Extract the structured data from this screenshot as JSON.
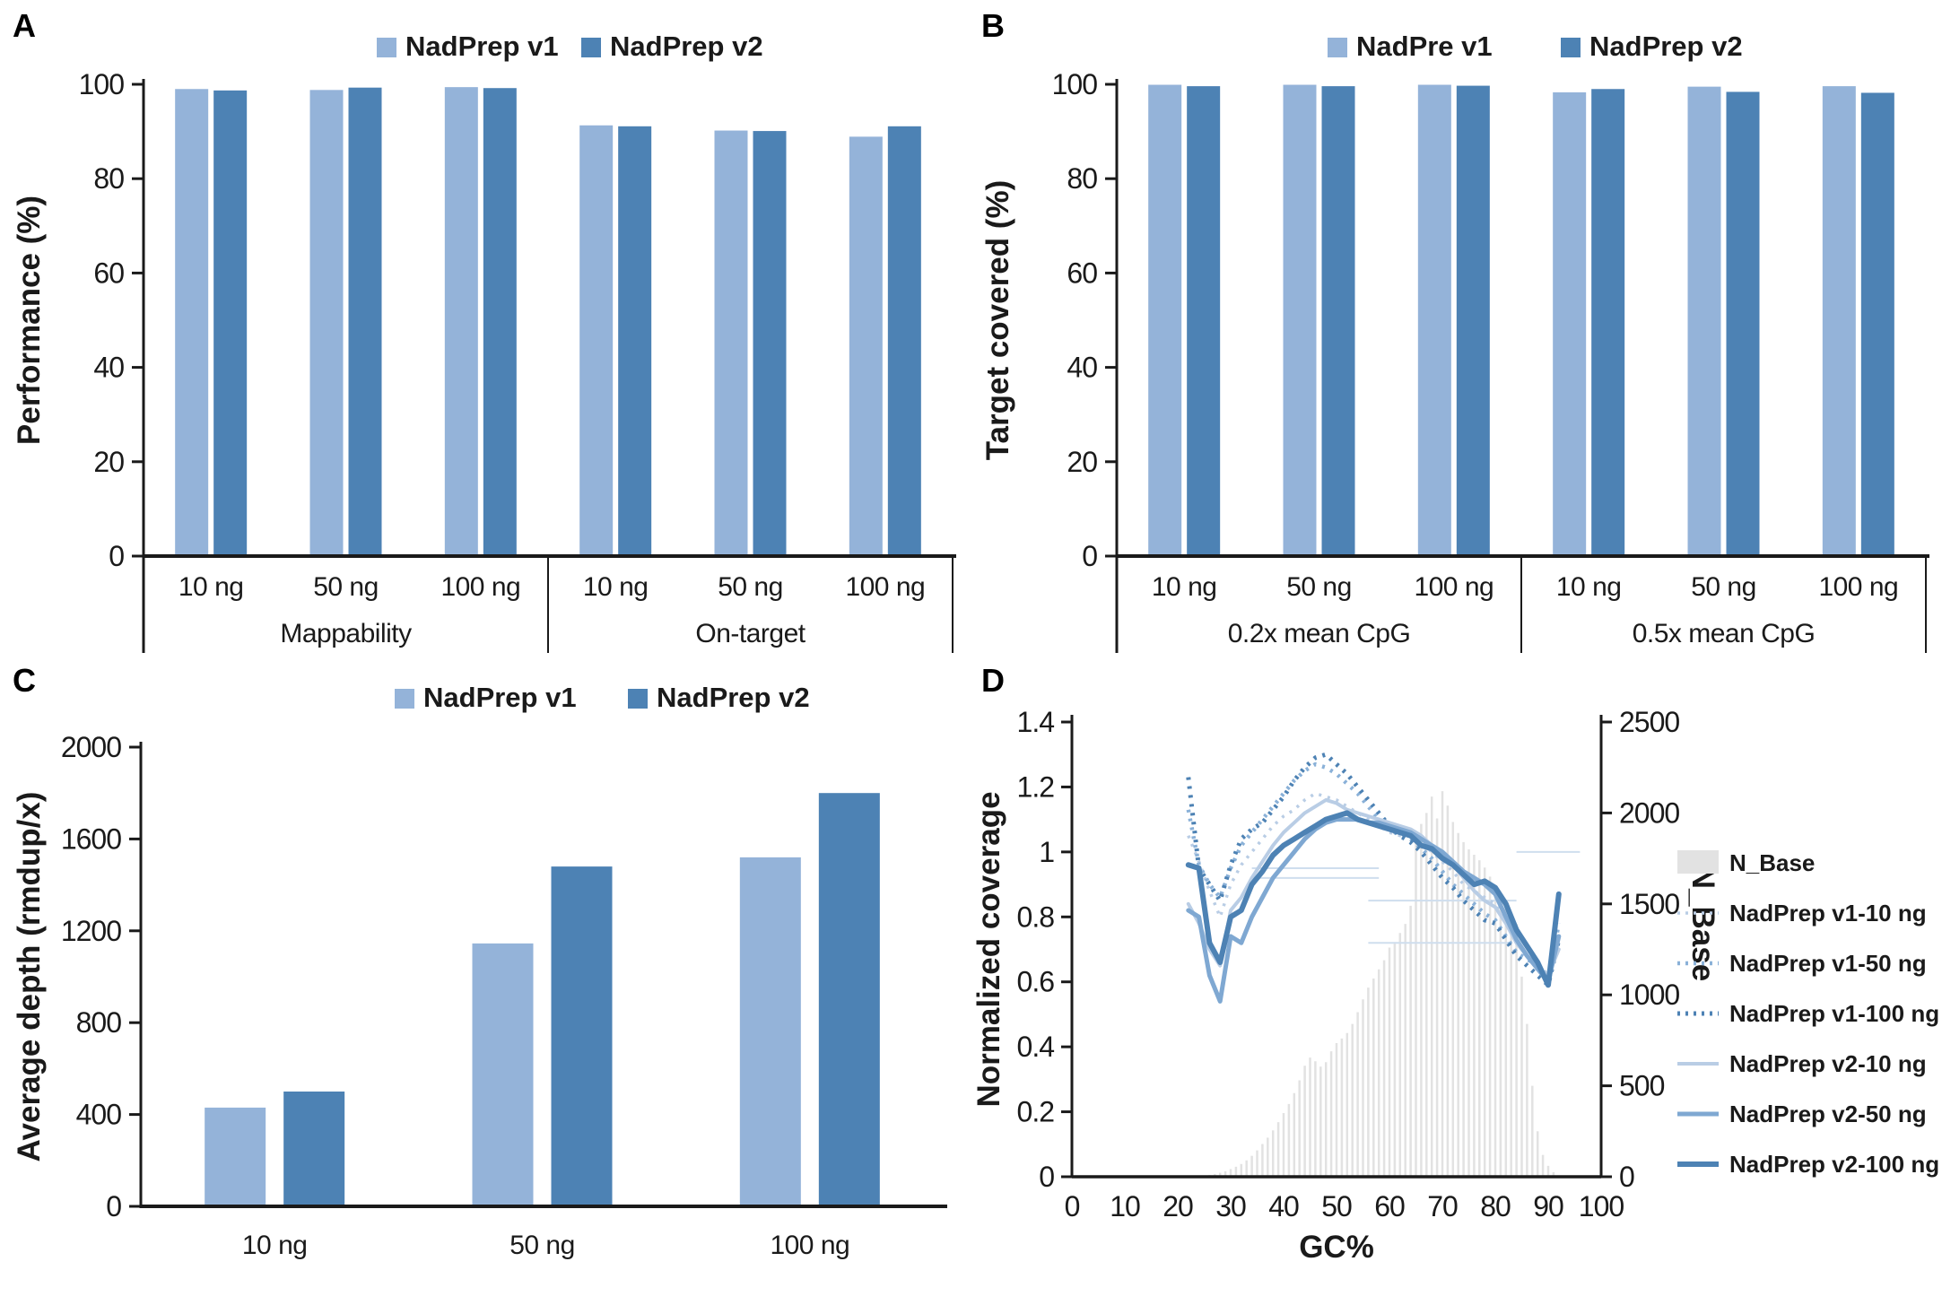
{
  "panels": {
    "a": {
      "label": "A"
    },
    "b": {
      "label": "B"
    },
    "c": {
      "label": "C"
    },
    "d": {
      "label": "D"
    }
  },
  "colors": {
    "v1_light_blue": "#94b3d9",
    "v2_dark_blue": "#4d82b4",
    "histogram_gray": "#e2e2e2",
    "axis_black": "#1a1a1a"
  },
  "chart_data": [
    {
      "id": "A",
      "type": "bar",
      "ylabel": "Performance (%)",
      "ylim": [
        0,
        100
      ],
      "yticks": [
        0,
        20,
        40,
        60,
        80,
        100
      ],
      "legend": [
        {
          "key": "v1",
          "label": "NadPrep v1",
          "color": "#94b3d9"
        },
        {
          "key": "v2",
          "label": "NadPrep v2",
          "color": "#4d82b4"
        }
      ],
      "legend_position": "top",
      "grid": false,
      "groups": [
        {
          "label": "Mappability",
          "categories": [
            "10 ng",
            "50 ng",
            "100 ng"
          ],
          "v1": [
            99.0,
            98.8,
            99.4
          ],
          "v2": [
            98.7,
            99.3,
            99.2
          ]
        },
        {
          "label": "On-target",
          "categories": [
            "10 ng",
            "50 ng",
            "100 ng"
          ],
          "v1": [
            91.3,
            90.2,
            88.9
          ],
          "v2": [
            91.1,
            90.1,
            91.1
          ]
        }
      ]
    },
    {
      "id": "B",
      "type": "bar",
      "ylabel": "Target covered (%)",
      "ylim": [
        0,
        100
      ],
      "yticks": [
        0,
        20,
        40,
        60,
        80,
        100
      ],
      "legend": [
        {
          "key": "v1",
          "label": "NadPre v1",
          "color": "#94b3d9"
        },
        {
          "key": "v2",
          "label": "NadPrep v2",
          "color": "#4d82b4"
        }
      ],
      "legend_position": "top",
      "grid": false,
      "groups": [
        {
          "label": "0.2x mean CpG",
          "categories": [
            "10 ng",
            "50 ng",
            "100 ng"
          ],
          "v1": [
            99.9,
            99.9,
            99.9
          ],
          "v2": [
            99.6,
            99.6,
            99.7
          ]
        },
        {
          "label": "0.5x mean CpG",
          "categories": [
            "10 ng",
            "50 ng",
            "100 ng"
          ],
          "v1": [
            98.3,
            99.5,
            99.6
          ],
          "v2": [
            99.0,
            98.4,
            98.2
          ]
        }
      ]
    },
    {
      "id": "C",
      "type": "bar",
      "ylabel": "Average depth (rmdup/x)",
      "ylim": [
        0,
        2000
      ],
      "yticks": [
        0,
        400,
        800,
        1200,
        1600,
        2000
      ],
      "legend": [
        {
          "key": "v1",
          "label": "NadPrep v1",
          "color": "#94b3d9"
        },
        {
          "key": "v2",
          "label": "NadPrep v2",
          "color": "#4d82b4"
        }
      ],
      "legend_position": "top",
      "grid": false,
      "groups": [
        {
          "label": "",
          "categories": [
            "10 ng",
            "50 ng",
            "100 ng"
          ],
          "v1": [
            430,
            1145,
            1520
          ],
          "v2": [
            500,
            1480,
            1800
          ]
        }
      ]
    },
    {
      "id": "D",
      "type": "combo",
      "xlabel": "GC%",
      "xlim": [
        0,
        100
      ],
      "xticks": [
        0,
        10,
        20,
        30,
        40,
        50,
        60,
        70,
        80,
        90,
        100
      ],
      "left_axis": {
        "label": "Normalized coverage",
        "lim": [
          0,
          1.4
        ],
        "ticks": [
          0,
          0.2,
          0.4,
          0.6,
          0.8,
          1.0,
          1.2,
          1.4
        ]
      },
      "right_axis": {
        "label": "N_Base",
        "lim": [
          0,
          2500
        ],
        "ticks": [
          0,
          500,
          1000,
          1500,
          2000,
          2500
        ]
      },
      "histogram": {
        "name": "N_Base",
        "color": "#e2e2e2",
        "gc_start": 24,
        "values": [
          4,
          7,
          10,
          15,
          22,
          30,
          42,
          55,
          70,
          90,
          115,
          145,
          180,
          215,
          255,
          300,
          350,
          400,
          460,
          530,
          610,
          655,
          635,
          605,
          630,
          690,
          735,
          760,
          790,
          840,
          905,
          975,
          1040,
          1090,
          1140,
          1190,
          1260,
          1290,
          1340,
          1390,
          1490,
          1880,
          1940,
          2000,
          2090,
          1970,
          2120,
          2040,
          1950,
          1890,
          1840,
          1800,
          1770,
          1740,
          1700,
          1650,
          1600,
          1550,
          1500,
          1450,
          1390,
          1100,
          840,
          500,
          250,
          120,
          60,
          25,
          8
        ]
      },
      "line_x": [
        22,
        24,
        26,
        28,
        30,
        32,
        34,
        36,
        38,
        40,
        42,
        44,
        46,
        48,
        50,
        52,
        54,
        56,
        58,
        60,
        62,
        64,
        66,
        68,
        70,
        72,
        74,
        76,
        78,
        80,
        82,
        84,
        86,
        88,
        90,
        92
      ],
      "series": [
        {
          "name": "NadPrep v1-10 ng",
          "style": "dotted",
          "color": "#b9cde5",
          "width": 3.5,
          "values": [
            1.05,
            0.97,
            0.88,
            0.8,
            0.9,
            0.96,
            1.0,
            1.04,
            1.08,
            1.11,
            1.13,
            1.16,
            1.18,
            1.17,
            1.16,
            1.14,
            1.12,
            1.1,
            1.08,
            1.06,
            1.05,
            1.05,
            1.03,
            1.0,
            0.97,
            0.94,
            0.9,
            0.88,
            0.86,
            0.84,
            0.78,
            0.72,
            0.68,
            0.66,
            0.62,
            0.76
          ]
        },
        {
          "name": "NadPrep v1-50 ng",
          "style": "dotted",
          "color": "#8ab1d8",
          "width": 4.5,
          "values": [
            1.13,
            0.96,
            0.9,
            0.86,
            0.95,
            1.02,
            1.06,
            1.1,
            1.14,
            1.18,
            1.22,
            1.25,
            1.27,
            1.26,
            1.24,
            1.21,
            1.18,
            1.14,
            1.1,
            1.07,
            1.05,
            1.04,
            1.01,
            0.98,
            0.94,
            0.9,
            0.87,
            0.84,
            0.81,
            0.79,
            0.74,
            0.69,
            0.67,
            0.65,
            0.6,
            0.78
          ]
        },
        {
          "name": "NadPrep v1-100 ng",
          "style": "dotted",
          "color": "#4d82b4",
          "width": 5,
          "values": [
            1.23,
            0.95,
            0.9,
            0.85,
            0.96,
            1.04,
            1.07,
            1.09,
            1.13,
            1.17,
            1.22,
            1.26,
            1.29,
            1.3,
            1.27,
            1.24,
            1.2,
            1.16,
            1.12,
            1.08,
            1.05,
            1.03,
            1.0,
            0.96,
            0.92,
            0.89,
            0.85,
            0.82,
            0.79,
            0.78,
            0.73,
            0.68,
            0.65,
            0.62,
            0.59,
            0.73
          ]
        },
        {
          "name": "NadPrep v2-10 ng",
          "style": "solid",
          "color": "#b9cde5",
          "width": 4,
          "values": [
            0.84,
            0.78,
            0.7,
            0.65,
            0.82,
            0.86,
            0.92,
            0.97,
            1.02,
            1.06,
            1.09,
            1.12,
            1.14,
            1.16,
            1.15,
            1.13,
            1.12,
            1.11,
            1.1,
            1.09,
            1.08,
            1.07,
            1.05,
            1.02,
            0.99,
            0.96,
            0.92,
            0.88,
            0.85,
            0.83,
            0.78,
            0.72,
            0.68,
            0.64,
            0.62,
            0.7
          ]
        },
        {
          "name": "NadPrep v2-50 ng",
          "style": "solid",
          "color": "#7fa8d2",
          "width": 5,
          "values": [
            0.82,
            0.8,
            0.62,
            0.54,
            0.74,
            0.72,
            0.8,
            0.86,
            0.92,
            0.96,
            1.0,
            1.04,
            1.07,
            1.09,
            1.1,
            1.1,
            1.1,
            1.09,
            1.09,
            1.08,
            1.07,
            1.06,
            1.04,
            1.02,
            1.0,
            0.97,
            0.94,
            0.92,
            0.9,
            0.87,
            0.8,
            0.73,
            0.68,
            0.64,
            0.6,
            0.74
          ]
        },
        {
          "name": "NadPrep v2-100 ng",
          "style": "solid",
          "color": "#4d82b4",
          "width": 6,
          "values": [
            0.96,
            0.95,
            0.72,
            0.66,
            0.8,
            0.82,
            0.9,
            0.94,
            0.99,
            1.02,
            1.04,
            1.06,
            1.08,
            1.1,
            1.11,
            1.12,
            1.1,
            1.09,
            1.08,
            1.07,
            1.06,
            1.05,
            1.02,
            1.01,
            0.98,
            0.96,
            0.93,
            0.9,
            0.91,
            0.89,
            0.84,
            0.76,
            0.71,
            0.66,
            0.59,
            0.87
          ]
        }
      ],
      "faint_reference_lines": [
        {
          "x1": 34,
          "x2": 58,
          "y": 0.95
        },
        {
          "x1": 35,
          "x2": 58,
          "y": 0.92
        },
        {
          "x1": 56,
          "x2": 84,
          "y": 0.85
        },
        {
          "x1": 56,
          "x2": 83,
          "y": 0.72
        },
        {
          "x1": 84,
          "x2": 96,
          "y": 1.0
        }
      ],
      "legend": [
        {
          "label": "N_Base",
          "style": "swatch",
          "color": "#e2e2e2"
        },
        {
          "label": "NadPrep v1-10 ng",
          "style": "dotted",
          "color": "#b9cde5",
          "width": 3.5
        },
        {
          "label": "NadPrep v1-50 ng",
          "style": "dotted",
          "color": "#8ab1d8",
          "width": 4.5
        },
        {
          "label": "NadPrep v1-100 ng",
          "style": "dotted",
          "color": "#4d82b4",
          "width": 5
        },
        {
          "label": "NadPrep v2-10 ng",
          "style": "solid",
          "color": "#b9cde5",
          "width": 4
        },
        {
          "label": "NadPrep v2-50 ng",
          "style": "solid",
          "color": "#7fa8d2",
          "width": 5
        },
        {
          "label": "NadPrep v2-100 ng",
          "style": "solid",
          "color": "#4d82b4",
          "width": 6
        }
      ],
      "legend_position": "right"
    }
  ]
}
